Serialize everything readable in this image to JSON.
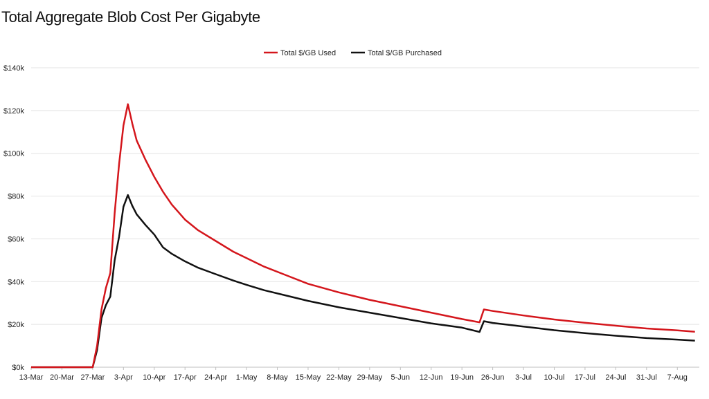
{
  "chart_data": {
    "type": "line",
    "title": "Total Aggregate Blob Cost Per Gigabyte",
    "xlabel": "",
    "ylabel": "",
    "ylim": [
      0,
      140000
    ],
    "yticks": [
      {
        "value": 0,
        "label": "$0k"
      },
      {
        "value": 20000,
        "label": "$20k"
      },
      {
        "value": 40000,
        "label": "$40k"
      },
      {
        "value": 60000,
        "label": "$60k"
      },
      {
        "value": 80000,
        "label": "$80k"
      },
      {
        "value": 100000,
        "label": "$100k"
      },
      {
        "value": 120000,
        "label": "$120k"
      },
      {
        "value": 140000,
        "label": "$140k"
      }
    ],
    "xlim": [
      "2024-03-13",
      "2024-08-12"
    ],
    "xticks": [
      {
        "date": "2024-03-13",
        "label": "13-Mar"
      },
      {
        "date": "2024-03-20",
        "label": "20-Mar"
      },
      {
        "date": "2024-03-27",
        "label": "27-Mar"
      },
      {
        "date": "2024-04-03",
        "label": "3-Apr"
      },
      {
        "date": "2024-04-10",
        "label": "10-Apr"
      },
      {
        "date": "2024-04-17",
        "label": "17-Apr"
      },
      {
        "date": "2024-04-24",
        "label": "24-Apr"
      },
      {
        "date": "2024-05-01",
        "label": "1-May"
      },
      {
        "date": "2024-05-08",
        "label": "8-May"
      },
      {
        "date": "2024-05-15",
        "label": "15-May"
      },
      {
        "date": "2024-05-22",
        "label": "22-May"
      },
      {
        "date": "2024-05-29",
        "label": "29-May"
      },
      {
        "date": "2024-06-05",
        "label": "5-Jun"
      },
      {
        "date": "2024-06-12",
        "label": "12-Jun"
      },
      {
        "date": "2024-06-19",
        "label": "19-Jun"
      },
      {
        "date": "2024-06-26",
        "label": "26-Jun"
      },
      {
        "date": "2024-07-03",
        "label": "3-Jul"
      },
      {
        "date": "2024-07-10",
        "label": "10-Jul"
      },
      {
        "date": "2024-07-17",
        "label": "17-Jul"
      },
      {
        "date": "2024-07-24",
        "label": "24-Jul"
      },
      {
        "date": "2024-07-31",
        "label": "31-Jul"
      },
      {
        "date": "2024-08-07",
        "label": "7-Aug"
      }
    ],
    "grid": "horizontal",
    "legend_position": "top-center",
    "series": [
      {
        "name": "Total $/GB Used",
        "color": "#d4161c",
        "points": [
          [
            "2024-03-13",
            0
          ],
          [
            "2024-03-27",
            0
          ],
          [
            "2024-03-28",
            10000
          ],
          [
            "2024-03-29",
            27000
          ],
          [
            "2024-03-30",
            37000
          ],
          [
            "2024-03-31",
            44000
          ],
          [
            "2024-04-01",
            72000
          ],
          [
            "2024-04-02",
            95000
          ],
          [
            "2024-04-03",
            113000
          ],
          [
            "2024-04-04",
            123000
          ],
          [
            "2024-04-05",
            114000
          ],
          [
            "2024-04-06",
            106000
          ],
          [
            "2024-04-08",
            97000
          ],
          [
            "2024-04-10",
            89000
          ],
          [
            "2024-04-12",
            82000
          ],
          [
            "2024-04-14",
            76000
          ],
          [
            "2024-04-17",
            69000
          ],
          [
            "2024-04-20",
            64000
          ],
          [
            "2024-04-24",
            59000
          ],
          [
            "2024-04-28",
            54000
          ],
          [
            "2024-05-01",
            51000
          ],
          [
            "2024-05-05",
            47000
          ],
          [
            "2024-05-10",
            43000
          ],
          [
            "2024-05-15",
            39000
          ],
          [
            "2024-05-22",
            35000
          ],
          [
            "2024-05-29",
            31500
          ],
          [
            "2024-06-05",
            28500
          ],
          [
            "2024-06-12",
            25500
          ],
          [
            "2024-06-19",
            22500
          ],
          [
            "2024-06-23",
            21000
          ],
          [
            "2024-06-24",
            27000
          ],
          [
            "2024-06-26",
            26300
          ],
          [
            "2024-07-03",
            24200
          ],
          [
            "2024-07-10",
            22300
          ],
          [
            "2024-07-17",
            20800
          ],
          [
            "2024-07-24",
            19400
          ],
          [
            "2024-07-31",
            18100
          ],
          [
            "2024-08-07",
            17200
          ],
          [
            "2024-08-11",
            16600
          ]
        ]
      },
      {
        "name": "Total $/GB Purchased",
        "color": "#111111",
        "points": [
          [
            "2024-03-13",
            0
          ],
          [
            "2024-03-27",
            0
          ],
          [
            "2024-03-28",
            8000
          ],
          [
            "2024-03-29",
            23000
          ],
          [
            "2024-03-30",
            29000
          ],
          [
            "2024-03-31",
            33000
          ],
          [
            "2024-04-01",
            50000
          ],
          [
            "2024-04-02",
            61000
          ],
          [
            "2024-04-03",
            75000
          ],
          [
            "2024-04-04",
            80500
          ],
          [
            "2024-04-05",
            75500
          ],
          [
            "2024-04-06",
            71500
          ],
          [
            "2024-04-08",
            66500
          ],
          [
            "2024-04-10",
            62000
          ],
          [
            "2024-04-12",
            56000
          ],
          [
            "2024-04-14",
            53000
          ],
          [
            "2024-04-17",
            49500
          ],
          [
            "2024-04-20",
            46500
          ],
          [
            "2024-04-24",
            43500
          ],
          [
            "2024-04-28",
            40500
          ],
          [
            "2024-05-01",
            38500
          ],
          [
            "2024-05-05",
            36000
          ],
          [
            "2024-05-10",
            33500
          ],
          [
            "2024-05-15",
            31000
          ],
          [
            "2024-05-22",
            28000
          ],
          [
            "2024-05-29",
            25500
          ],
          [
            "2024-06-05",
            23000
          ],
          [
            "2024-06-12",
            20500
          ],
          [
            "2024-06-19",
            18500
          ],
          [
            "2024-06-23",
            16500
          ],
          [
            "2024-06-24",
            21500
          ],
          [
            "2024-06-26",
            20700
          ],
          [
            "2024-07-03",
            19000
          ],
          [
            "2024-07-10",
            17300
          ],
          [
            "2024-07-17",
            15900
          ],
          [
            "2024-07-24",
            14700
          ],
          [
            "2024-07-31",
            13600
          ],
          [
            "2024-08-07",
            12900
          ],
          [
            "2024-08-11",
            12400
          ]
        ]
      }
    ]
  }
}
